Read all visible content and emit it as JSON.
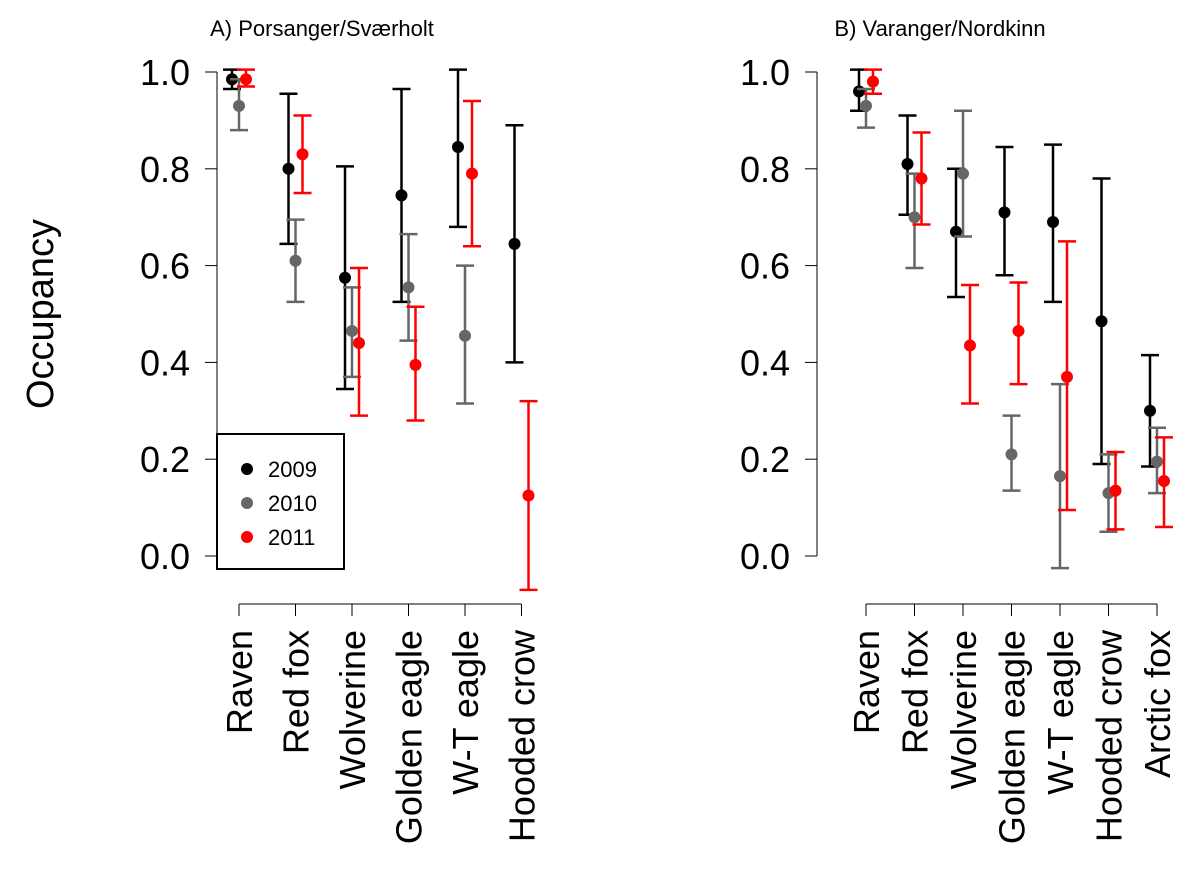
{
  "colors": {
    "2009": "#000000",
    "2010": "#666666",
    "2011": "#ff0000"
  },
  "legend": {
    "entries": [
      {
        "label": "2009",
        "color": "#000000"
      },
      {
        "label": "2010",
        "color": "#666666"
      },
      {
        "label": "2011",
        "color": "#ff0000"
      }
    ],
    "placement": "bottom-left"
  },
  "chart_data": [
    {
      "type": "scatter",
      "subtype": "point-with-error-bars",
      "title": "A) Porsanger/Sværholt",
      "ylabel": "Occupancy",
      "xlabel": "",
      "ylim": [
        0.0,
        1.0
      ],
      "yticks": [
        "0.0",
        "0.2",
        "0.4",
        "0.6",
        "0.8",
        "1.0"
      ],
      "grid": false,
      "categories": [
        "Raven",
        "Red fox",
        "Wolverine",
        "Golden eagle",
        "W-T eagle",
        "Hooded crow"
      ],
      "series": [
        {
          "name": "2009",
          "color": "#000000",
          "values": [
            0.985,
            0.8,
            0.575,
            0.745,
            0.845,
            0.645
          ],
          "lower": [
            0.965,
            0.645,
            0.345,
            0.525,
            0.68,
            0.4
          ],
          "upper": [
            1.005,
            0.955,
            0.805,
            0.965,
            1.005,
            0.89
          ]
        },
        {
          "name": "2010",
          "color": "#666666",
          "values": [
            0.93,
            0.61,
            0.465,
            0.555,
            0.455,
            null
          ],
          "lower": [
            0.88,
            0.525,
            0.37,
            0.445,
            0.315,
            null
          ],
          "upper": [
            0.985,
            0.695,
            0.555,
            0.665,
            0.6,
            null
          ]
        },
        {
          "name": "2011",
          "color": "#ff0000",
          "values": [
            0.985,
            0.83,
            0.44,
            0.395,
            0.79,
            0.125
          ],
          "lower": [
            0.97,
            0.75,
            0.29,
            0.28,
            0.64,
            -0.07
          ],
          "upper": [
            1.005,
            0.91,
            0.595,
            0.515,
            0.94,
            0.32
          ]
        }
      ]
    },
    {
      "type": "scatter",
      "subtype": "point-with-error-bars",
      "title": "B) Varanger/Nordkinn",
      "ylabel": "",
      "xlabel": "",
      "ylim": [
        0.0,
        1.0
      ],
      "yticks": [
        "0.0",
        "0.2",
        "0.4",
        "0.6",
        "0.8",
        "1.0"
      ],
      "grid": false,
      "categories": [
        "Raven",
        "Red fox",
        "Wolverine",
        "Golden eagle",
        "W-T eagle",
        "Hooded crow",
        "Arctic fox"
      ],
      "series": [
        {
          "name": "2009",
          "color": "#000000",
          "values": [
            0.96,
            0.81,
            0.67,
            0.71,
            0.69,
            0.485,
            0.3
          ],
          "lower": [
            0.92,
            0.705,
            0.535,
            0.58,
            0.525,
            0.19,
            0.185
          ],
          "upper": [
            1.005,
            0.91,
            0.8,
            0.845,
            0.85,
            0.78,
            0.415
          ]
        },
        {
          "name": "2010",
          "color": "#666666",
          "values": [
            0.93,
            0.7,
            0.79,
            0.21,
            0.165,
            0.13,
            0.195
          ],
          "lower": [
            0.885,
            0.595,
            0.66,
            0.135,
            -0.025,
            0.05,
            0.13
          ],
          "upper": [
            0.965,
            0.79,
            0.92,
            0.29,
            0.355,
            0.21,
            0.265
          ]
        },
        {
          "name": "2011",
          "color": "#ff0000",
          "values": [
            0.98,
            0.78,
            0.435,
            0.465,
            0.37,
            0.135,
            0.155
          ],
          "lower": [
            0.955,
            0.685,
            0.315,
            0.355,
            0.095,
            0.055,
            0.06
          ],
          "upper": [
            1.005,
            0.875,
            0.56,
            0.565,
            0.65,
            0.215,
            0.245
          ]
        }
      ]
    }
  ]
}
